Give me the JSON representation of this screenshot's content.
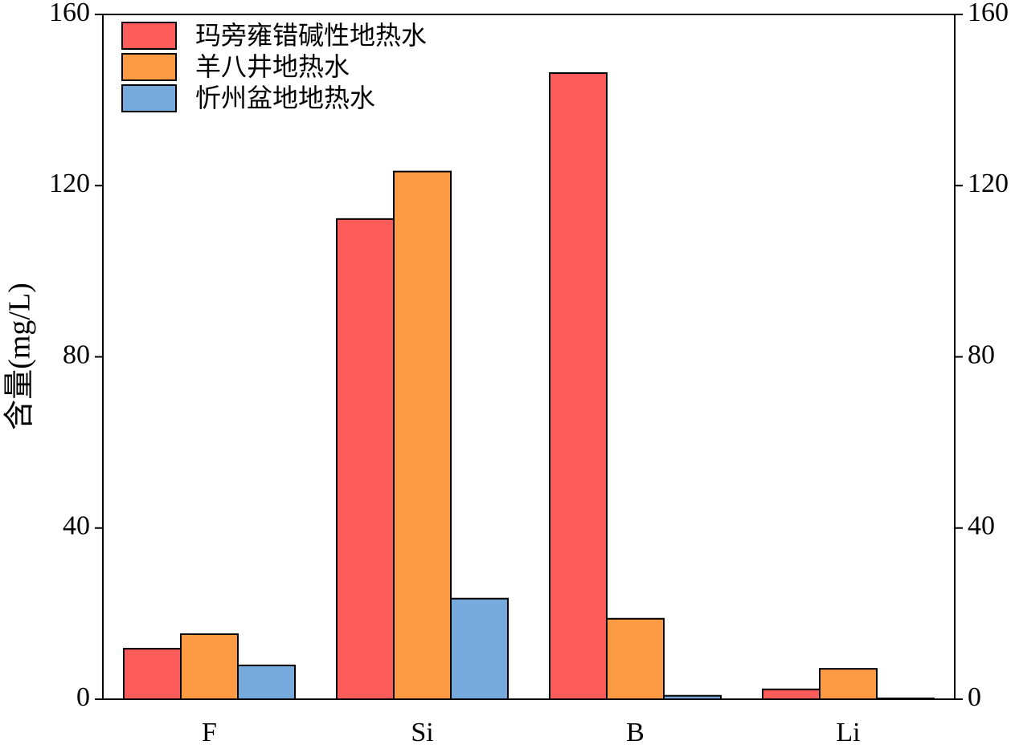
{
  "chart_data": {
    "type": "bar",
    "y_label": "含量(mg/L)",
    "categories": [
      "F",
      "Si",
      "B",
      "Li"
    ],
    "series": [
      {
        "name": "玛旁雍错碱性地热水",
        "color": "#fe5b5b",
        "values": [
          11.8,
          112.2,
          146.3,
          2.3
        ]
      },
      {
        "name": "羊八井地热水",
        "color": "#fd9b45",
        "values": [
          15.2,
          123.3,
          18.8,
          7.1
        ]
      },
      {
        "name": "忻州盆地地热水",
        "color": "#76a9dc",
        "values": [
          7.9,
          23.5,
          0.8,
          0.2
        ]
      }
    ],
    "ylim": [
      0,
      160
    ],
    "yticks": [
      0,
      40,
      80,
      120,
      160
    ],
    "y2lim": [
      0,
      160
    ],
    "y2ticks": [
      0,
      40,
      80,
      120,
      160
    ],
    "legend": "upper left"
  }
}
